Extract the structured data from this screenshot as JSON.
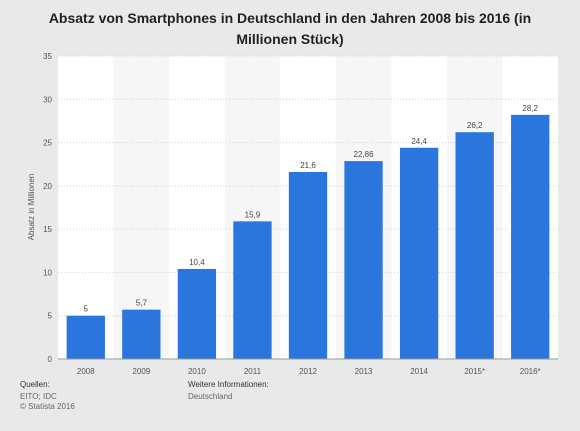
{
  "chart_data": {
    "type": "bar",
    "title": "Absatz von Smartphones in Deutschland in den Jahren 2008 bis 2016 (in Millionen Stück)",
    "ylabel": "Absatz in Millionen",
    "xlabel": "",
    "categories": [
      "2008",
      "2009",
      "2010",
      "2011",
      "2012",
      "2013",
      "2014",
      "2015*",
      "2016*"
    ],
    "values": [
      5,
      5.7,
      10.4,
      15.9,
      21.6,
      22.86,
      24.4,
      26.2,
      28.2
    ],
    "value_labels": [
      "5",
      "5,7",
      "10,4",
      "15,9",
      "21,6",
      "22,86",
      "24,4",
      "26,2",
      "28,2"
    ],
    "ylim": [
      0,
      35
    ],
    "yticks": [
      0,
      5,
      10,
      15,
      20,
      25,
      30,
      35
    ],
    "grid": true,
    "bar_color": "#2a76dd"
  },
  "footer": {
    "sources_heading": "Quellen:",
    "sources": "EITO; IDC",
    "copyright": "© Statista 2016",
    "info_heading": "Weitere Informationen:",
    "info": "Deutschland"
  }
}
